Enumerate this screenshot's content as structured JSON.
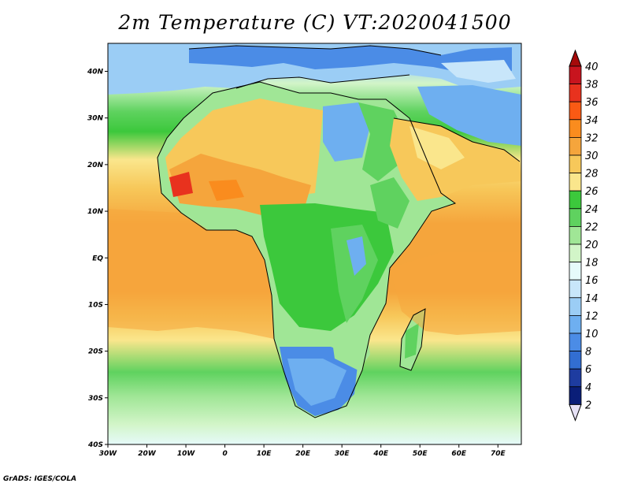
{
  "title": "2m Temperature (C) VT:2020041500",
  "credit": "GrADS: IGES/COLA",
  "map": {
    "lon_range": [
      -30,
      76
    ],
    "lat_range": [
      -40,
      46
    ],
    "lon_ticks": [
      {
        "value": -30,
        "label": "30W"
      },
      {
        "value": -20,
        "label": "20W"
      },
      {
        "value": -10,
        "label": "10W"
      },
      {
        "value": 0,
        "label": "0"
      },
      {
        "value": 10,
        "label": "10E"
      },
      {
        "value": 20,
        "label": "20E"
      },
      {
        "value": 30,
        "label": "30E"
      },
      {
        "value": 40,
        "label": "40E"
      },
      {
        "value": 50,
        "label": "50E"
      },
      {
        "value": 60,
        "label": "60E"
      },
      {
        "value": 70,
        "label": "70E"
      }
    ],
    "lat_ticks": [
      {
        "value": 40,
        "label": "40N"
      },
      {
        "value": 30,
        "label": "30N"
      },
      {
        "value": 20,
        "label": "20N"
      },
      {
        "value": 10,
        "label": "10N"
      },
      {
        "value": 0,
        "label": "EQ"
      },
      {
        "value": -10,
        "label": "10S"
      },
      {
        "value": -20,
        "label": "20S"
      },
      {
        "value": -30,
        "label": "30S"
      },
      {
        "value": -40,
        "label": "40S"
      }
    ]
  },
  "colorbar": {
    "labels": [
      "40",
      "38",
      "36",
      "34",
      "32",
      "30",
      "28",
      "26",
      "24",
      "22",
      "20",
      "18",
      "16",
      "14",
      "12",
      "10",
      "8",
      "6",
      "4",
      "2"
    ],
    "colors": [
      "#a50a0a",
      "#c8141e",
      "#e8321e",
      "#fa5a14",
      "#fa8c1e",
      "#f5a53c",
      "#f7c85a",
      "#fae68c",
      "#3cc83c",
      "#5fd25f",
      "#a0e696",
      "#d2f5c8",
      "#e6fafa",
      "#c8e6fa",
      "#9bcdf5",
      "#6eaff0",
      "#4b8ce6",
      "#326ed2",
      "#1e3ca0",
      "#0a1e78",
      "#e6e1f5"
    ]
  }
}
